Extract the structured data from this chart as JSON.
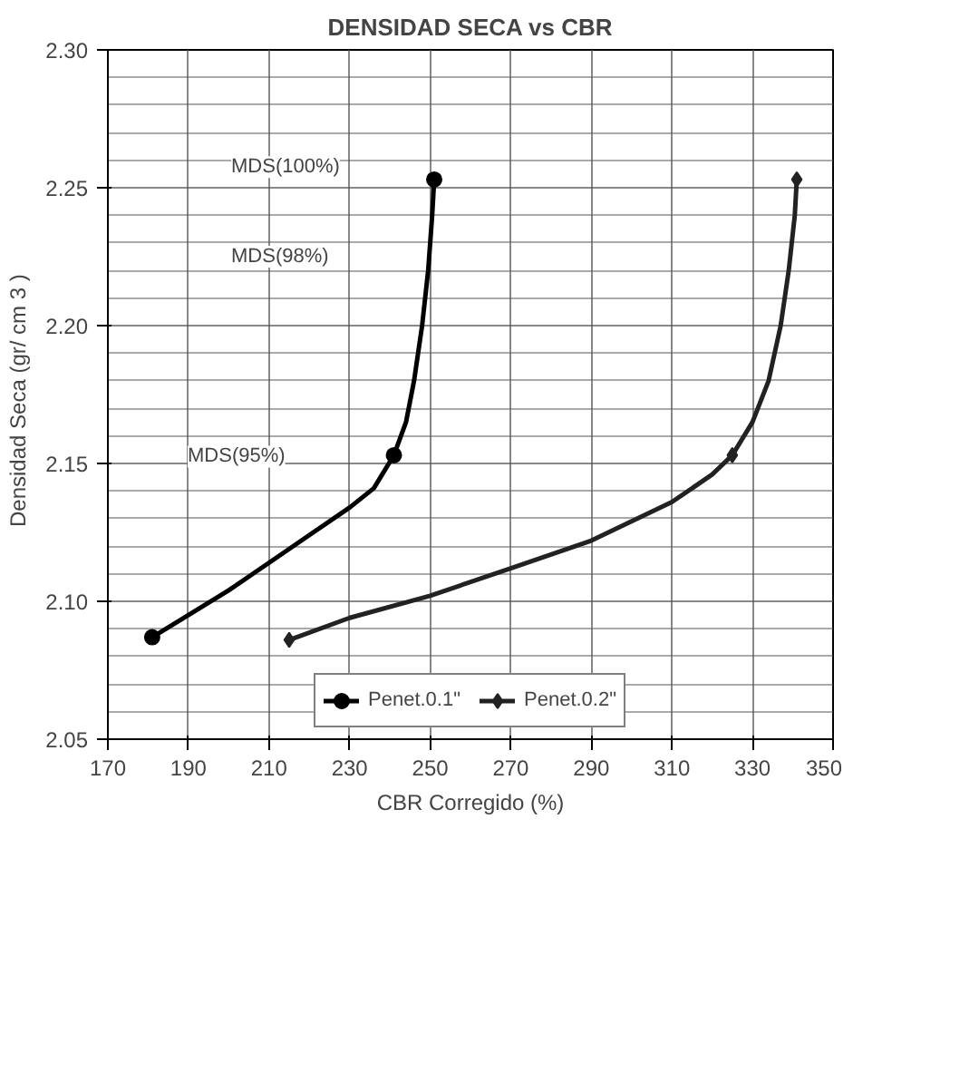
{
  "chart_data": {
    "type": "line",
    "title": "DENSIDAD SECA vs CBR",
    "xlabel": "CBR Corregido (%)",
    "ylabel": "Densidad Seca  (gr/ cm 3  )",
    "series": [
      {
        "name": "Penet.0.1\"",
        "color": "#000000",
        "x": [
          181,
          190,
          200,
          210,
          220,
          230,
          236,
          241,
          244,
          246,
          248,
          249.5,
          250.5,
          251
        ],
        "values": [
          2.087,
          2.095,
          2.104,
          2.114,
          2.124,
          2.134,
          2.141,
          2.153,
          2.165,
          2.18,
          2.2,
          2.22,
          2.24,
          2.253
        ],
        "marker": "none"
      },
      {
        "type": "scatter",
        "color": "#000000",
        "x": [
          181,
          241,
          251
        ],
        "values": [
          2.087,
          2.153,
          2.253
        ],
        "marker": "circle"
      },
      {
        "name": "Penet.0.2\"",
        "color": "#222222",
        "x": [
          215,
          230,
          250,
          270,
          290,
          310,
          320,
          325,
          330,
          334,
          337,
          339,
          340.5,
          341
        ],
        "values": [
          2.086,
          2.094,
          2.102,
          2.112,
          2.122,
          2.136,
          2.146,
          2.153,
          2.165,
          2.18,
          2.2,
          2.22,
          2.24,
          2.253
        ],
        "marker": "none"
      },
      {
        "type": "scatter",
        "color": "#222222",
        "x": [
          215,
          325,
          341
        ],
        "values": [
          2.086,
          2.153,
          2.253
        ],
        "marker": "diamond"
      }
    ],
    "xlim": [
      170,
      350
    ],
    "xticks": [
      170,
      190,
      210,
      230,
      250,
      270,
      290,
      310,
      330,
      350
    ],
    "ylim": [
      2.05,
      2.3
    ],
    "yticks": [
      {
        "value": 2.05,
        "label": "2.05"
      },
      {
        "value": 2.1,
        "label": "2.10"
      },
      {
        "value": 2.15,
        "label": "2.15"
      },
      {
        "value": 2.2,
        "label": "2.20"
      },
      {
        "value": 2.25,
        "label": "2.25"
      },
      {
        "value": 2.3,
        "label": "2.30"
      }
    ],
    "annotations": [
      "MDS(100%)",
      "MDS(98%)",
      "MDS(95%)"
    ],
    "grid": true,
    "legend": "bottom",
    "line_style": "solid"
  }
}
